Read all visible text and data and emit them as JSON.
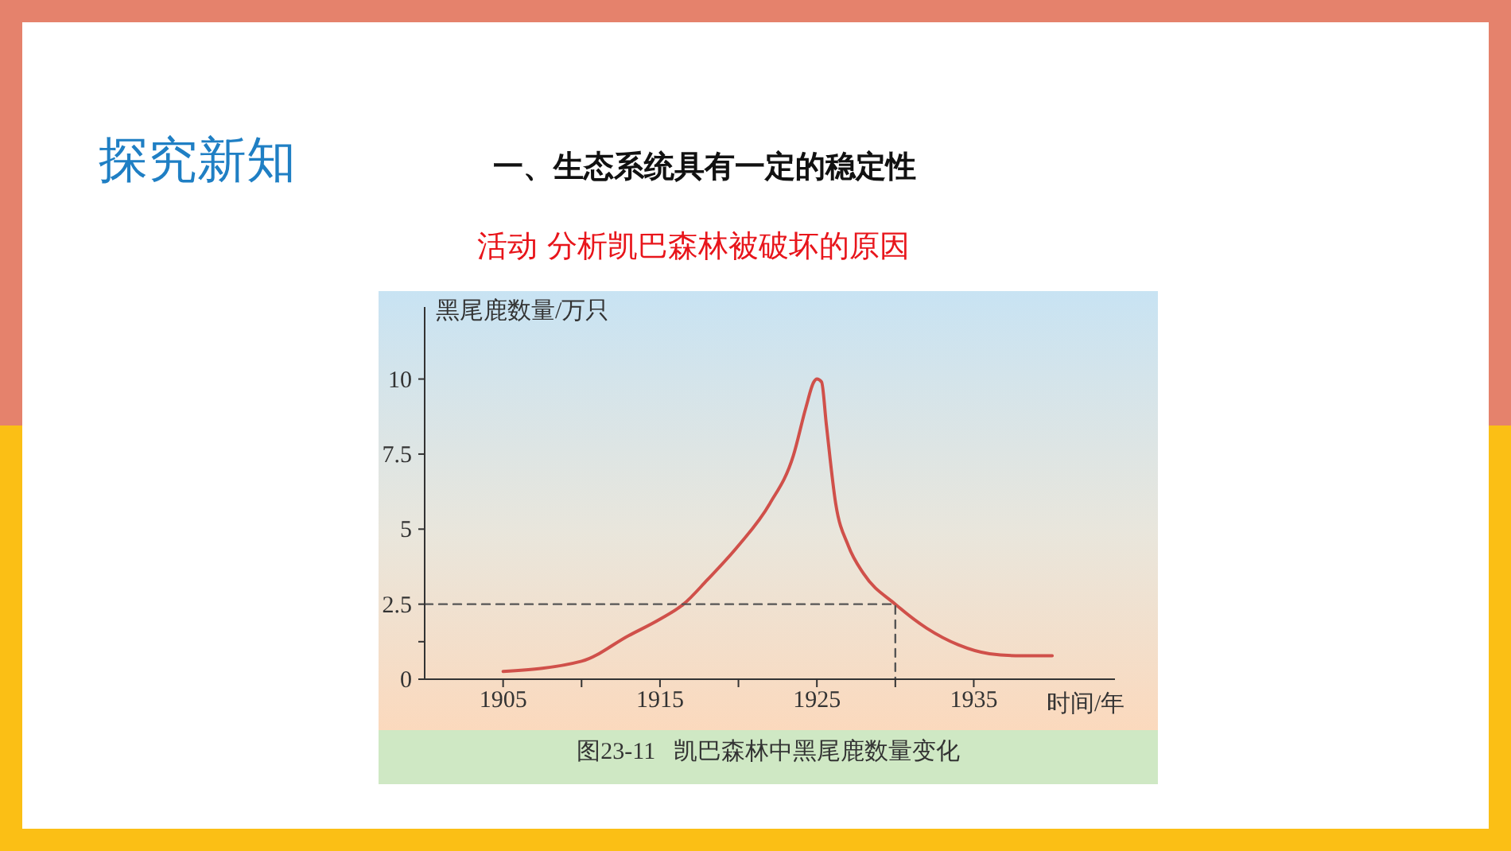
{
  "chart_data": {
    "type": "line",
    "title": "一、生态系统具有一定的稳定性",
    "subtitle": "活动  分析凯巴森林被破坏的原因",
    "xlabel": "时间/年",
    "ylabel": "黑尾鹿数量/万只",
    "annotations": [
      "探究新知",
      "图23-11   凯巴森林中黑尾鹿数量变化"
    ],
    "xlim": [
      1900,
      1944
    ],
    "xticks": [
      1905,
      {
        "value": 1910,
        "label": null
      },
      1915,
      {
        "value": 1920,
        "label": null
      },
      1925,
      {
        "value": 1930,
        "label": null
      },
      1935
    ],
    "ylim": [
      0,
      12.4
    ],
    "yticks": [
      0,
      {
        "value": 1.25,
        "label": null
      },
      2.5,
      5,
      7.5,
      10
    ],
    "grid": false,
    "marker": "none",
    "series": [
      {
        "color": "#d0504a",
        "line_style": "solid",
        "x": [
          1905,
          1910,
          1913,
          1915,
          1916.5,
          1918,
          1920,
          1922,
          1923.5,
          1924.3,
          1924.8,
          1925,
          1925.3,
          1925.6,
          1926.2,
          1927,
          1928,
          1930,
          1932,
          1934,
          1936,
          1938,
          1940
        ],
        "values": [
          0.26,
          0.6,
          1.45,
          2.0,
          2.5,
          3.3,
          4.45,
          5.85,
          7.45,
          9.05,
          9.9,
          10.0,
          9.9,
          8.5,
          5.85,
          4.45,
          3.5,
          2.5,
          1.7,
          1.15,
          0.85,
          0.78,
          0.78
        ]
      },
      {
        "color": "#555555",
        "line_style": "dashed",
        "x": [
          1900,
          1930,
          1930
        ],
        "values": [
          2.5,
          2.5,
          0
        ]
      }
    ]
  }
}
